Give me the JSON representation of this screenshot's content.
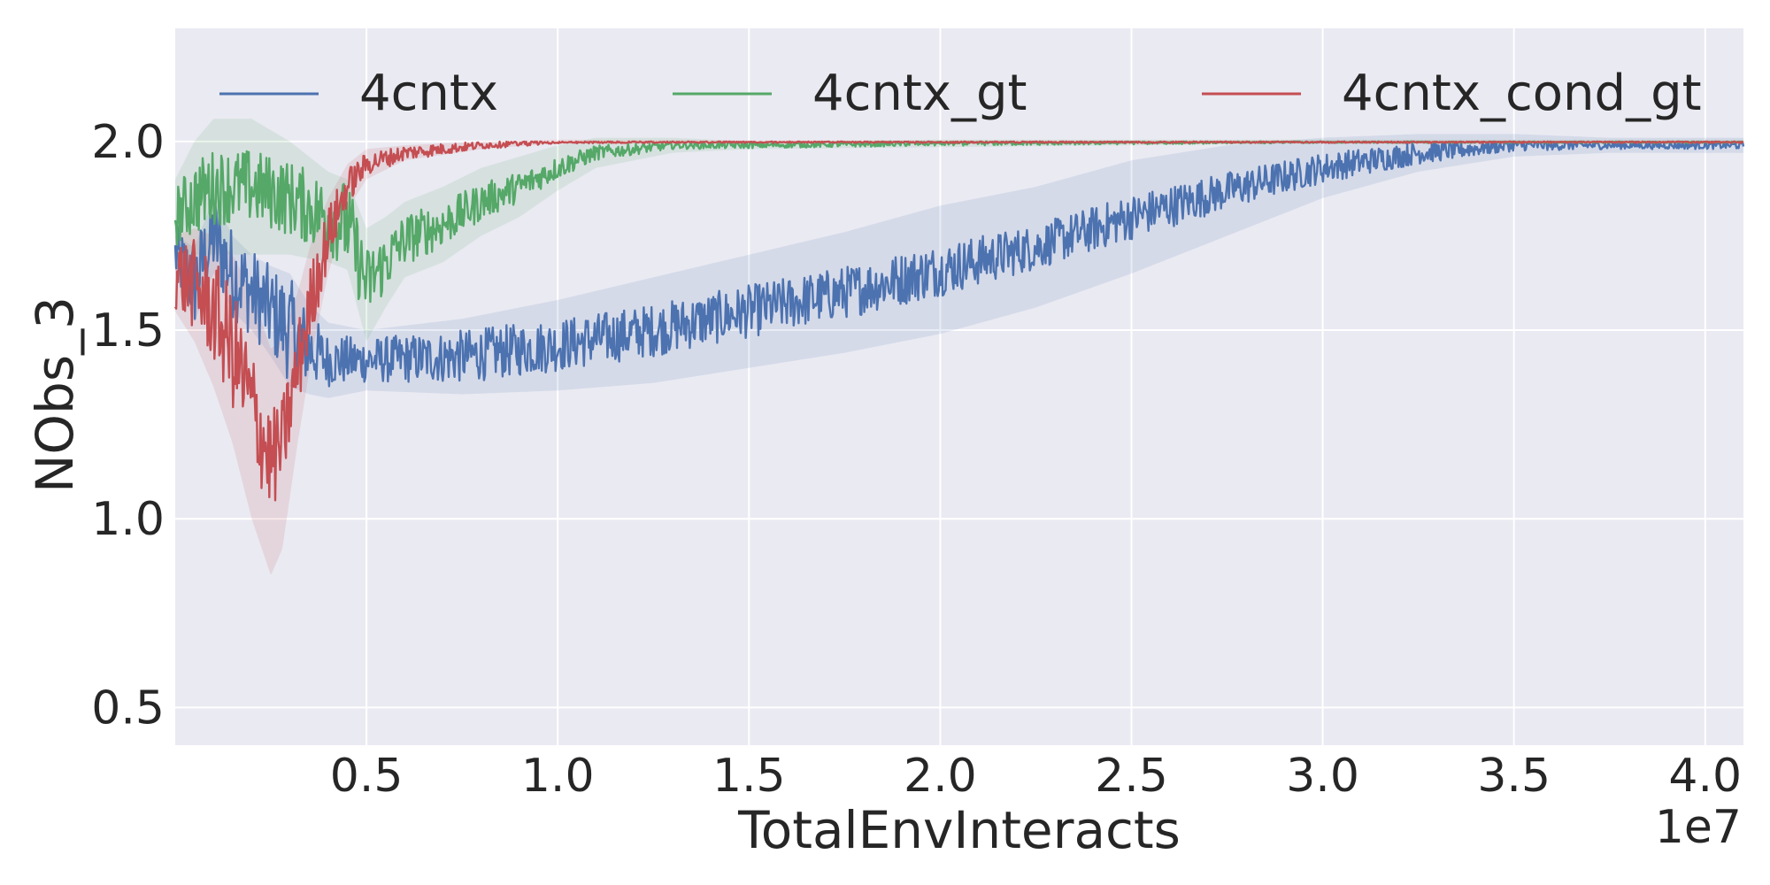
{
  "chart_data": {
    "type": "line",
    "title": "",
    "xlabel": "TotalEnvInteracts",
    "ylabel": "NObs_3",
    "x_offset_label": "1e7",
    "xlim": [
      0.0,
      4.1
    ],
    "ylim": [
      0.4,
      2.3
    ],
    "x_ticks": [
      0.5,
      1.0,
      1.5,
      2.0,
      2.5,
      3.0,
      3.5,
      4.0
    ],
    "x_tick_labels": [
      "0.5",
      "1.0",
      "1.5",
      "2.0",
      "2.5",
      "3.0",
      "3.5",
      "4.0"
    ],
    "y_ticks": [
      0.5,
      1.0,
      1.5,
      2.0
    ],
    "y_tick_labels": [
      "0.5",
      "1.0",
      "1.5",
      "2.0"
    ],
    "grid": true,
    "legend_position": "top, horizontal",
    "plot_background": "#eaeaf2",
    "series": [
      {
        "name": "4cntx",
        "color": "#4c72b0",
        "x": [
          0.0,
          0.05,
          0.1,
          0.15,
          0.2,
          0.25,
          0.3,
          0.35,
          0.4,
          0.5,
          0.75,
          1.0,
          1.25,
          1.5,
          1.75,
          2.0,
          2.25,
          2.5,
          2.75,
          3.0,
          3.25,
          3.5,
          3.75,
          4.1
        ],
        "y": [
          1.7,
          1.62,
          1.75,
          1.65,
          1.6,
          1.55,
          1.5,
          1.45,
          1.42,
          1.42,
          1.43,
          1.46,
          1.5,
          1.55,
          1.6,
          1.66,
          1.72,
          1.8,
          1.87,
          1.93,
          1.97,
          1.99,
          1.99,
          1.99
        ],
        "noise": [
          0.08,
          0.12,
          0.12,
          0.12,
          0.12,
          0.12,
          0.14,
          0.1,
          0.07,
          0.06,
          0.07,
          0.07,
          0.07,
          0.07,
          0.07,
          0.07,
          0.06,
          0.06,
          0.05,
          0.04,
          0.03,
          0.015,
          0.01,
          0.01
        ],
        "band": [
          0.05,
          0.1,
          0.1,
          0.1,
          0.1,
          0.12,
          0.15,
          0.12,
          0.1,
          0.08,
          0.1,
          0.12,
          0.14,
          0.15,
          0.16,
          0.17,
          0.16,
          0.15,
          0.12,
          0.08,
          0.05,
          0.03,
          0.02,
          0.02
        ]
      },
      {
        "name": "4cntx_gt",
        "color": "#55a868",
        "x": [
          0.0,
          0.05,
          0.1,
          0.2,
          0.3,
          0.4,
          0.45,
          0.5,
          0.55,
          0.6,
          0.7,
          0.8,
          0.9,
          1.0,
          1.1,
          1.3,
          1.5,
          2.0,
          3.0,
          4.1
        ],
        "y": [
          1.8,
          1.85,
          1.88,
          1.88,
          1.85,
          1.8,
          1.78,
          1.62,
          1.68,
          1.74,
          1.78,
          1.84,
          1.88,
          1.93,
          1.97,
          1.99,
          1.99,
          1.995,
          2.0,
          2.0
        ],
        "noise": [
          0.08,
          0.1,
          0.1,
          0.1,
          0.1,
          0.1,
          0.12,
          0.1,
          0.08,
          0.07,
          0.06,
          0.05,
          0.04,
          0.03,
          0.02,
          0.01,
          0.008,
          0.006,
          0.004,
          0.003
        ],
        "band": [
          0.1,
          0.15,
          0.18,
          0.18,
          0.15,
          0.12,
          0.12,
          0.15,
          0.12,
          0.1,
          0.1,
          0.09,
          0.08,
          0.06,
          0.04,
          0.02,
          0.01,
          0.01,
          0.005,
          0.005
        ]
      },
      {
        "name": "4cntx_cond_gt",
        "color": "#c44e52",
        "x": [
          0.0,
          0.05,
          0.1,
          0.15,
          0.2,
          0.25,
          0.28,
          0.32,
          0.36,
          0.4,
          0.45,
          0.5,
          0.6,
          0.8,
          1.0,
          1.5,
          4.1
        ],
        "y": [
          1.65,
          1.62,
          1.55,
          1.45,
          1.3,
          1.15,
          1.2,
          1.4,
          1.6,
          1.75,
          1.88,
          1.94,
          1.97,
          1.99,
          2.0,
          2.0,
          2.0
        ],
        "noise": [
          0.1,
          0.12,
          0.14,
          0.16,
          0.16,
          0.14,
          0.12,
          0.12,
          0.1,
          0.08,
          0.05,
          0.03,
          0.02,
          0.01,
          0.005,
          0.003,
          0.002
        ],
        "band": [
          0.1,
          0.15,
          0.2,
          0.25,
          0.3,
          0.3,
          0.28,
          0.2,
          0.15,
          0.1,
          0.06,
          0.04,
          0.02,
          0.01,
          0.005,
          0.003,
          0.002
        ]
      }
    ]
  }
}
